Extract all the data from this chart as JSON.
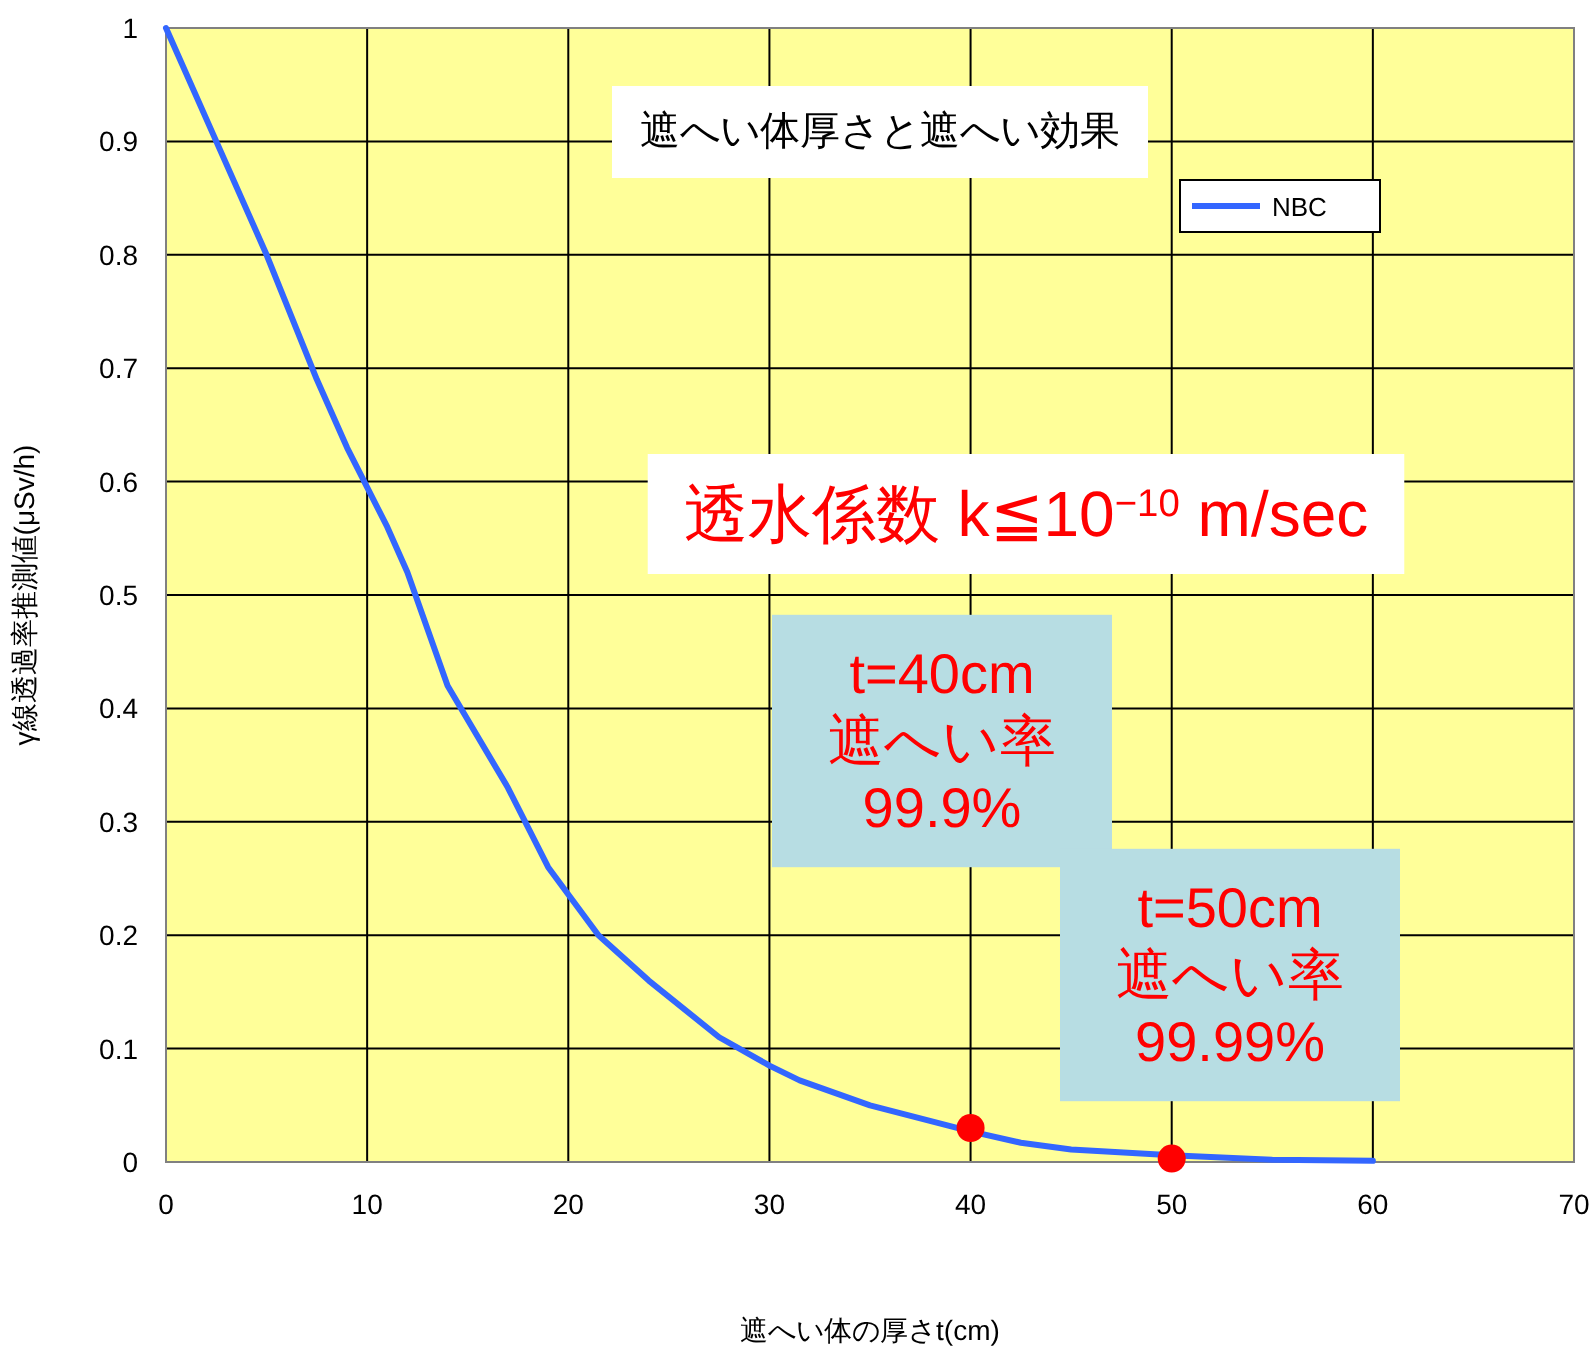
{
  "chart_data": {
    "type": "line",
    "title": "遮へい体厚さと遮へい効果",
    "xlabel": "遮へい体の厚さt(cm)",
    "ylabel": "γ線透過率推測値(μSv/h)",
    "xlim": [
      0,
      70
    ],
    "ylim": [
      0,
      1
    ],
    "xticks": [
      0,
      10,
      20,
      30,
      40,
      50,
      60,
      70
    ],
    "yticks": [
      0,
      0.1,
      0.2,
      0.3,
      0.4,
      0.5,
      0.6,
      0.7,
      0.8,
      0.9,
      1
    ],
    "grid": true,
    "legend": "top right",
    "series": [
      {
        "name": "NBC",
        "color": "#3366ff",
        "x": [
          0,
          2.5,
          5,
          7.5,
          9,
          11,
          12,
          14,
          17,
          19,
          21.5,
          24,
          27.5,
          30,
          31.5,
          35,
          40,
          42.5,
          45,
          50,
          55,
          60
        ],
        "values": [
          1,
          0.9,
          0.8,
          0.69,
          0.63,
          0.56,
          0.52,
          0.42,
          0.33,
          0.26,
          0.2,
          0.16,
          0.11,
          0.085,
          0.072,
          0.05,
          0.027,
          0.017,
          0.011,
          0.006,
          0.002,
          0.001
        ]
      },
      {
        "color": "#ff0000",
        "type": "scatter",
        "marker": "circle",
        "x": [
          40,
          50
        ],
        "values": [
          0.03,
          0.003
        ]
      }
    ],
    "annotations": [
      "透水係数  k≦10$^{−10}$ m/sec",
      "t=40cm\n遮へい率\n99.9%",
      "t=50cm\n遮へい率\n99.99%"
    ]
  }
}
